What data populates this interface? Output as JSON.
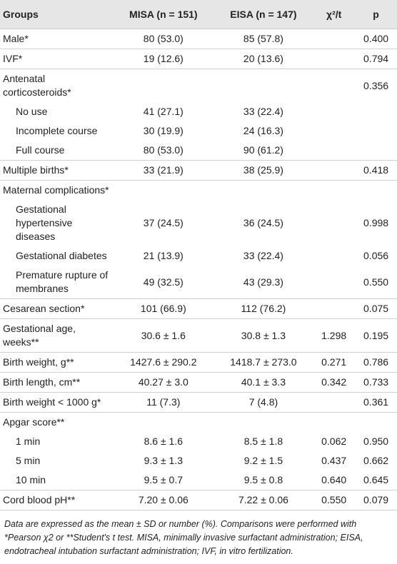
{
  "table": {
    "header": [
      "Groups",
      "MISA (n = 151)",
      "EISA (n = 147)",
      "χ²/t",
      "p"
    ],
    "rows": [
      {
        "label": "Male*",
        "misa": "80 (53.0)",
        "eisa": "85 (57.8)",
        "p": "0.400"
      },
      {
        "label": "IVF*",
        "misa": "19 (12.6)",
        "eisa": "20 (13.6)",
        "p": "0.794"
      },
      {
        "label": "Antenatal corticosteroids*",
        "p": "0.356",
        "items": [
          {
            "label": "No use",
            "misa": "41 (27.1)",
            "eisa": "33 (22.4)"
          },
          {
            "label": "Incomplete course",
            "misa": "30 (19.9)",
            "eisa": "24 (16.3)"
          },
          {
            "label": "Full course",
            "misa": "80 (53.0)",
            "eisa": "90 (61.2)"
          }
        ]
      },
      {
        "label": "Multiple births*",
        "misa": "33 (21.9)",
        "eisa": "38 (25.9)",
        "p": "0.418"
      },
      {
        "label": "Maternal complications*",
        "items": [
          {
            "label": "Gestational hypertensive diseases",
            "misa": "37 (24.5)",
            "eisa": "36 (24.5)",
            "p": "0.998"
          },
          {
            "label": "Gestational diabetes",
            "misa": "21 (13.9)",
            "eisa": "33 (22.4)",
            "p": "0.056"
          },
          {
            "label": "Premature rupture of membranes",
            "misa": "49 (32.5)",
            "eisa": "43 (29.3)",
            "p": "0.550"
          }
        ]
      },
      {
        "label": "Cesarean section*",
        "misa": "101 (66.9)",
        "eisa": "112 (76.2)",
        "p": "0.075"
      },
      {
        "label": "Gestational age, weeks**",
        "misa": "30.6 ± 1.6",
        "eisa": "30.8 ± 1.3",
        "stat": "1.298",
        "p": "0.195"
      },
      {
        "label": "Birth weight, g**",
        "misa": "1427.6 ± 290.2",
        "eisa": "1418.7 ± 273.0",
        "stat": "0.271",
        "p": "0.786"
      },
      {
        "label": "Birth length, cm**",
        "misa": "40.27 ± 3.0",
        "eisa": "40.1 ± 3.3",
        "stat": "0.342",
        "p": "0.733"
      },
      {
        "label": "Birth weight < 1000 g*",
        "misa": "11 (7.3)",
        "eisa": "7 (4.8)",
        "p": "0.361"
      },
      {
        "label": "Apgar score**",
        "items": [
          {
            "label": "1 min",
            "misa": "8.6 ± 1.6",
            "eisa": "8.5 ± 1.8",
            "stat": "0.062",
            "p": "0.950"
          },
          {
            "label": "5 min",
            "misa": "9.3 ± 1.3",
            "eisa": "9.2 ± 1.5",
            "stat": "0.437",
            "p": "0.662"
          },
          {
            "label": "10 min",
            "misa": "9.5 ± 0.7",
            "eisa": "9.5 ± 0.8",
            "stat": "0.640",
            "p": "0.645"
          }
        ]
      },
      {
        "label": "Cord blood pH**",
        "misa": "7.20 ± 0.06",
        "eisa": "7.22 ± 0.06",
        "stat": "0.550",
        "p": "0.079"
      }
    ],
    "footnote": "Data are expressed as the mean ± SD or number (%). Comparisons were performed with *Pearson χ2 or **Student's t test. MISA, minimally invasive surfactant administration; EISA, endotracheal intubation surfactant administration; IVF, in vitro fertilization."
  }
}
